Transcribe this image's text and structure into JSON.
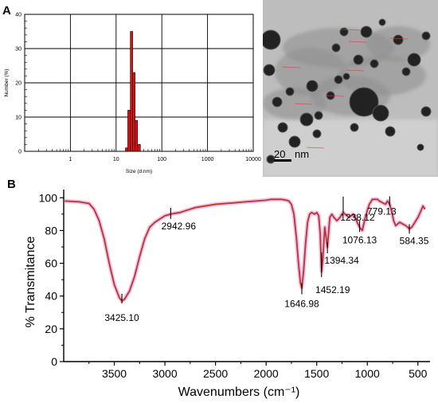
{
  "panels": {
    "a_label": "A",
    "b_label": "B"
  },
  "chart_data": [
    {
      "type": "bar",
      "panel": "A",
      "xscale": "log",
      "xlim": [
        0.1,
        10000
      ],
      "ylim": [
        0,
        40
      ],
      "xlabel": "Size (d.nm)",
      "ylabel": "Number (%)",
      "x_ticks": [
        1,
        10,
        100,
        1000,
        10000
      ],
      "y_ticks": [
        0,
        10,
        20,
        30,
        40
      ],
      "grid": true,
      "bar_color": "#dd1111",
      "bins": [
        {
          "from": 16,
          "to": 18,
          "value": 1
        },
        {
          "from": 18,
          "to": 20.5,
          "value": 12
        },
        {
          "from": 20.5,
          "to": 23,
          "value": 35
        },
        {
          "from": 23,
          "to": 26,
          "value": 23
        },
        {
          "from": 26,
          "to": 29.5,
          "value": 9
        },
        {
          "from": 29.5,
          "to": 34,
          "value": 2
        }
      ]
    },
    {
      "type": "line",
      "panel": "B",
      "xlabel": "Wavenumbers (cm⁻¹)",
      "ylabel": "% Transmitance",
      "xlim": [
        4000,
        380
      ],
      "ylim": [
        0,
        105
      ],
      "x_ticks": [
        3500,
        3000,
        2500,
        2000,
        1500,
        1000,
        500
      ],
      "y_ticks": [
        0,
        20,
        40,
        60,
        80,
        100
      ],
      "line_color": "#b23a2a",
      "glow_color": "#f4a3e0",
      "x": [
        3990,
        3850,
        3750,
        3700,
        3650,
        3600,
        3550,
        3500,
        3450,
        3425,
        3400,
        3350,
        3300,
        3250,
        3200,
        3150,
        3100,
        3050,
        3000,
        2942.96,
        2900,
        2850,
        2800,
        2750,
        2700,
        2600,
        2500,
        2400,
        2300,
        2200,
        2100,
        2000,
        1950,
        1900,
        1850,
        1800,
        1775,
        1750,
        1725,
        1700,
        1680,
        1660,
        1646.98,
        1630,
        1610,
        1590,
        1570,
        1550,
        1520,
        1500,
        1480,
        1465,
        1452.19,
        1440,
        1420,
        1394.34,
        1370,
        1350,
        1330,
        1300,
        1270,
        1250,
        1238.12,
        1220,
        1200,
        1180,
        1160,
        1140,
        1120,
        1100,
        1076.13,
        1050,
        1020,
        1000,
        980,
        950,
        930,
        900,
        880,
        850,
        820,
        800,
        779.13,
        760,
        740,
        720,
        700,
        680,
        650,
        620,
        600,
        584.35,
        560,
        530,
        500,
        470,
        450,
        430
      ],
      "y": [
        98,
        97.5,
        96.5,
        93,
        86,
        75,
        60,
        47,
        39,
        37,
        38,
        43,
        52,
        64,
        75,
        82,
        85,
        87,
        89,
        90,
        90.5,
        91,
        92,
        93,
        94,
        95,
        96,
        96.5,
        97,
        97.5,
        98,
        98.5,
        99,
        99,
        99,
        98.5,
        98,
        96,
        90,
        75,
        60,
        48,
        45,
        55,
        72,
        85,
        90,
        91,
        90,
        91,
        89,
        78,
        55,
        62,
        82,
        70,
        88,
        90,
        88,
        86,
        88,
        90,
        91,
        90,
        89,
        88,
        89,
        90,
        88,
        85,
        82,
        80,
        88,
        92,
        96,
        99,
        99,
        99,
        98,
        97,
        96,
        98,
        96,
        92,
        86,
        83,
        84,
        85,
        84,
        83,
        82,
        81,
        82,
        85,
        88,
        92,
        95,
        93
      ],
      "annotations": [
        {
          "label": "3425.10",
          "x": 3425.1
        },
        {
          "label": "2942.96",
          "x": 2942.96
        },
        {
          "label": "1646.98",
          "x": 1646.98
        },
        {
          "label": "1452.19",
          "x": 1452.19
        },
        {
          "label": "1394.34",
          "x": 1394.34
        },
        {
          "label": "1238.12",
          "x": 1238.12
        },
        {
          "label": "1076.13",
          "x": 1076.13
        },
        {
          "label": "779.13",
          "x": 779.13
        },
        {
          "label": "584.35",
          "x": 584.35
        }
      ]
    }
  ],
  "tem_image": {
    "scale_bar_value": "20",
    "scale_bar_unit": "nm",
    "background": "#bdbdbd"
  }
}
